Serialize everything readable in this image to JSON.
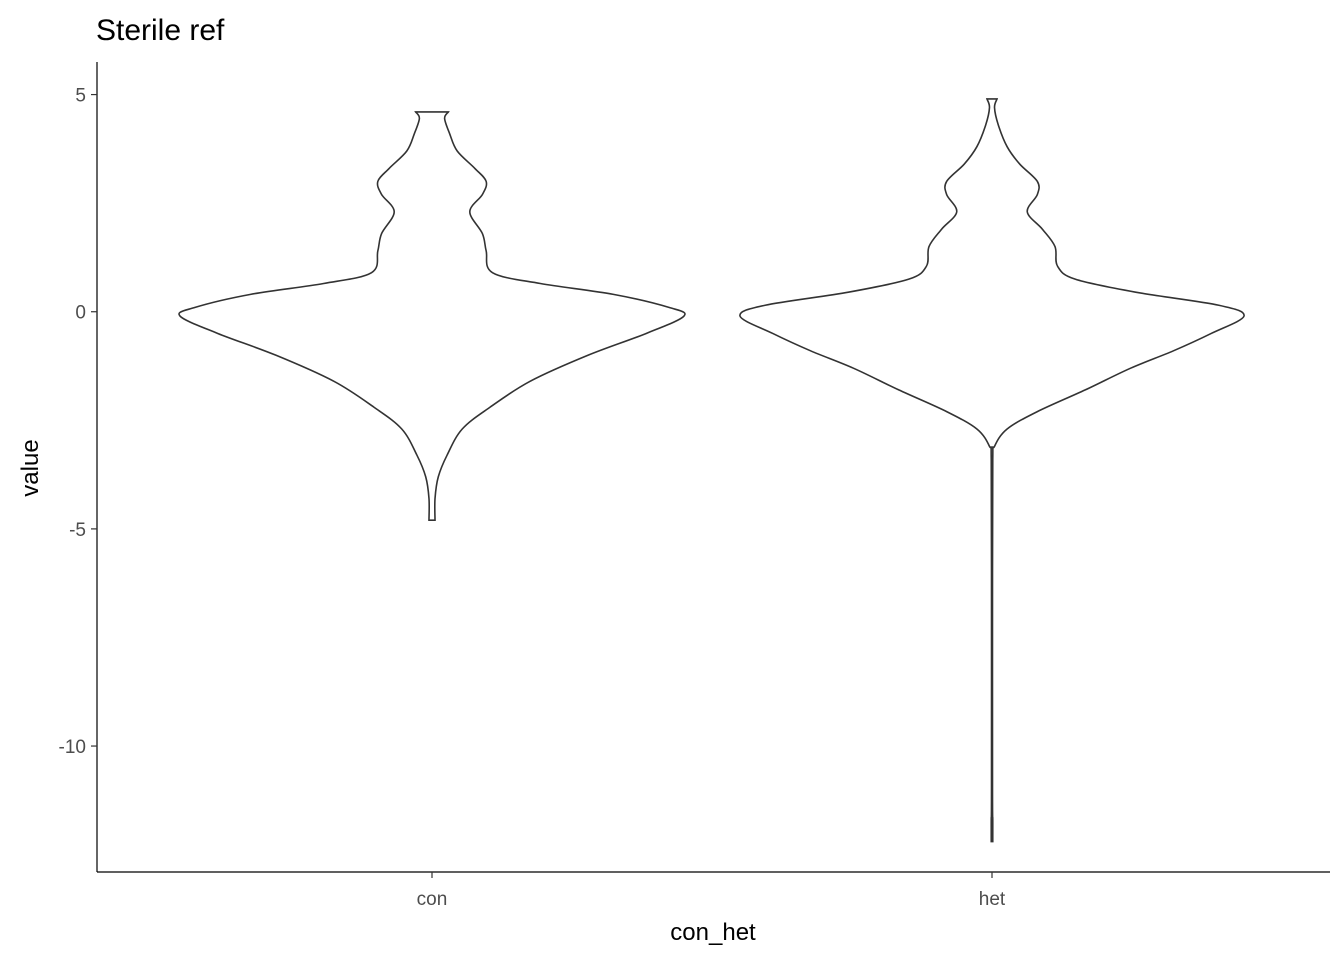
{
  "chart_data": {
    "type": "violin",
    "title": "Sterile ref",
    "xlabel": "con_het",
    "ylabel": "value",
    "categories": [
      "con",
      "het"
    ],
    "ylim": [
      -12.9,
      5.75
    ],
    "yticks": [
      5,
      0,
      -5,
      -10
    ],
    "ytick_labels": [
      "5",
      "0",
      "-5",
      "-10"
    ],
    "grid": false,
    "series": [
      {
        "category": "con",
        "min": -4.8,
        "max": 4.6,
        "density": [
          [
            -4.8,
            0.012
          ],
          [
            -4.3,
            0.012
          ],
          [
            -3.8,
            0.025
          ],
          [
            -3.3,
            0.06
          ],
          [
            -2.7,
            0.12
          ],
          [
            -2.2,
            0.23
          ],
          [
            -1.6,
            0.39
          ],
          [
            -1.0,
            0.62
          ],
          [
            -0.5,
            0.85
          ],
          [
            -0.1,
            1.0
          ],
          [
            0.1,
            0.94
          ],
          [
            0.4,
            0.72
          ],
          [
            0.65,
            0.43
          ],
          [
            0.9,
            0.24
          ],
          [
            1.4,
            0.215
          ],
          [
            1.8,
            0.2
          ],
          [
            2.3,
            0.15
          ],
          [
            2.7,
            0.2
          ],
          [
            3.0,
            0.215
          ],
          [
            3.3,
            0.17
          ],
          [
            3.7,
            0.1
          ],
          [
            4.1,
            0.07
          ],
          [
            4.45,
            0.05
          ],
          [
            4.6,
            0.065
          ]
        ]
      },
      {
        "category": "het",
        "min": -12.2,
        "max": 4.9,
        "density": [
          [
            -12.2,
            0.003
          ],
          [
            -11.7,
            0.003
          ],
          [
            -11.0,
            0.002
          ],
          [
            -6.0,
            0.002
          ],
          [
            -3.4,
            0.003
          ],
          [
            -3.1,
            0.01
          ],
          [
            -2.7,
            0.06
          ],
          [
            -2.3,
            0.18
          ],
          [
            -1.8,
            0.37
          ],
          [
            -1.3,
            0.55
          ],
          [
            -0.9,
            0.72
          ],
          [
            -0.5,
            0.87
          ],
          [
            -0.1,
            1.0
          ],
          [
            0.15,
            0.9
          ],
          [
            0.45,
            0.57
          ],
          [
            0.75,
            0.33
          ],
          [
            1.05,
            0.26
          ],
          [
            1.5,
            0.25
          ],
          [
            1.9,
            0.2
          ],
          [
            2.3,
            0.14
          ],
          [
            2.7,
            0.18
          ],
          [
            3.0,
            0.18
          ],
          [
            3.4,
            0.11
          ],
          [
            3.8,
            0.06
          ],
          [
            4.3,
            0.025
          ],
          [
            4.7,
            0.01
          ],
          [
            4.9,
            0.02
          ]
        ]
      }
    ]
  }
}
